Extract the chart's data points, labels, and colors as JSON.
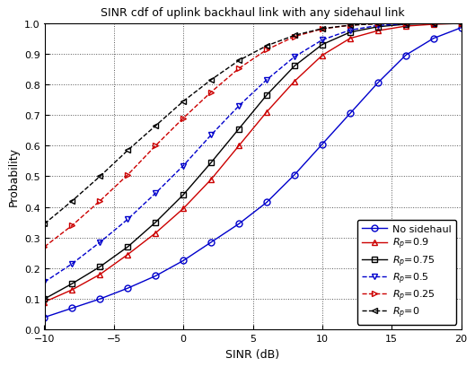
{
  "title": "SINR cdf of uplink backhaul link with any sidehaul link",
  "xlabel": "SINR (dB)",
  "ylabel": "Probability",
  "xlim": [
    -10,
    20
  ],
  "ylim": [
    0,
    1
  ],
  "xticks": [
    -10,
    -5,
    0,
    5,
    10,
    15,
    20
  ],
  "yticks": [
    0,
    0.1,
    0.2,
    0.3,
    0.4,
    0.5,
    0.6,
    0.7,
    0.8,
    0.9,
    1.0
  ],
  "series": [
    {
      "label": "No sidehaul",
      "color": "#0000cc",
      "linestyle": "-",
      "marker": "o",
      "markersize": 5,
      "x": [
        -10,
        -8,
        -6,
        -4,
        -2,
        0,
        2,
        4,
        6,
        8,
        10,
        12,
        14,
        16,
        18,
        20
      ],
      "y": [
        0.04,
        0.07,
        0.1,
        0.135,
        0.175,
        0.225,
        0.285,
        0.345,
        0.415,
        0.505,
        0.605,
        0.705,
        0.805,
        0.895,
        0.95,
        0.985
      ]
    },
    {
      "label": "R_p=0.9",
      "color": "#cc0000",
      "linestyle": "-",
      "marker": "^",
      "markersize": 5,
      "x": [
        -10,
        -8,
        -6,
        -4,
        -2,
        0,
        2,
        4,
        6,
        8,
        10,
        12,
        14,
        16,
        18,
        20
      ],
      "y": [
        0.09,
        0.13,
        0.18,
        0.245,
        0.315,
        0.395,
        0.49,
        0.6,
        0.71,
        0.81,
        0.895,
        0.95,
        0.975,
        0.99,
        0.996,
        0.999
      ]
    },
    {
      "label": "R_p=0.75",
      "color": "#000000",
      "linestyle": "-",
      "marker": "s",
      "markersize": 5,
      "x": [
        -10,
        -8,
        -6,
        -4,
        -2,
        0,
        2,
        4,
        6,
        8,
        10,
        12,
        14,
        16,
        18,
        20
      ],
      "y": [
        0.1,
        0.15,
        0.205,
        0.27,
        0.35,
        0.44,
        0.545,
        0.655,
        0.765,
        0.86,
        0.93,
        0.97,
        0.988,
        0.996,
        0.999,
        0.9998
      ]
    },
    {
      "label": "R_p=0.5",
      "color": "#0000cc",
      "linestyle": "--",
      "marker": "v",
      "markersize": 5,
      "x": [
        -10,
        -8,
        -6,
        -4,
        -2,
        0,
        2,
        4,
        6,
        8,
        10,
        12,
        14,
        16,
        18,
        20
      ],
      "y": [
        0.155,
        0.215,
        0.285,
        0.36,
        0.445,
        0.535,
        0.635,
        0.73,
        0.815,
        0.89,
        0.945,
        0.977,
        0.992,
        0.998,
        0.9995,
        0.9999
      ]
    },
    {
      "label": "R_p=0.25",
      "color": "#cc0000",
      "linestyle": "--",
      "marker": ">",
      "markersize": 5,
      "x": [
        -10,
        -8,
        -6,
        -4,
        -2,
        0,
        2,
        4,
        6,
        8,
        10,
        12,
        14,
        16,
        18,
        20
      ],
      "y": [
        0.27,
        0.34,
        0.42,
        0.505,
        0.6,
        0.69,
        0.775,
        0.852,
        0.913,
        0.956,
        0.981,
        0.993,
        0.998,
        0.9995,
        0.9999,
        1.0
      ]
    },
    {
      "label": "R_p=0",
      "color": "#000000",
      "linestyle": "--",
      "marker": "<",
      "markersize": 5,
      "x": [
        -10,
        -8,
        -6,
        -4,
        -2,
        0,
        2,
        4,
        6,
        8,
        10,
        12,
        14,
        16,
        18,
        20
      ],
      "y": [
        0.345,
        0.42,
        0.5,
        0.585,
        0.665,
        0.745,
        0.815,
        0.878,
        0.926,
        0.96,
        0.982,
        0.993,
        0.998,
        0.9995,
        0.9999,
        1.0
      ]
    }
  ],
  "legend_labels": [
    "No sidehaul",
    "$R_p$=0.9",
    "$R_p$=0.75",
    "$R_p$=0.5",
    "$R_p$=0.25",
    "$R_p$=0"
  ],
  "background_color": "#ffffff",
  "title_fontsize": 9,
  "label_fontsize": 9,
  "tick_fontsize": 8,
  "legend_fontsize": 8
}
